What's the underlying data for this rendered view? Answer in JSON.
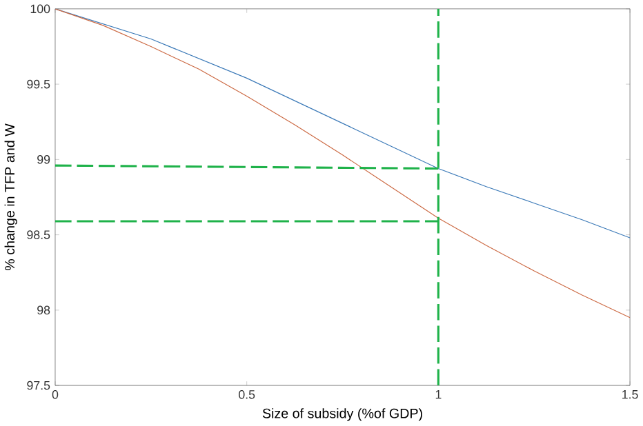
{
  "chart_data": {
    "type": "line",
    "xlabel": "Size of subsidy (%of GDP)",
    "ylabel": "% change in TFP and W",
    "xlim": [
      0,
      1.5
    ],
    "ylim": [
      97.5,
      100
    ],
    "xticks": [
      0,
      0.5,
      1,
      1.5
    ],
    "yticks": [
      97.5,
      98,
      98.5,
      99,
      99.5,
      100
    ],
    "grid": false,
    "series": [
      {
        "color": "#3c7ab8",
        "x": [
          0,
          0.125,
          0.25,
          0.375,
          0.5,
          0.625,
          0.75,
          0.875,
          1,
          1.125,
          1.25,
          1.375,
          1.5
        ],
        "values": [
          100,
          99.9,
          99.8,
          99.67,
          99.54,
          99.39,
          99.24,
          99.09,
          98.94,
          98.82,
          98.71,
          98.6,
          98.48
        ]
      },
      {
        "color": "#cc6a44",
        "x": [
          0,
          0.125,
          0.25,
          0.375,
          0.5,
          0.625,
          0.75,
          0.875,
          1,
          1.125,
          1.25,
          1.375,
          1.5
        ],
        "values": [
          100,
          99.89,
          99.75,
          99.6,
          99.42,
          99.23,
          99.03,
          98.82,
          98.61,
          98.43,
          98.26,
          98.1,
          97.95
        ]
      },
      {
        "color": "#1fb24a",
        "line_style": "dashed",
        "x": [
          0,
          1
        ],
        "values": [
          98.96,
          98.94
        ]
      },
      {
        "color": "#1fb24a",
        "line_style": "dashed",
        "x": [
          0,
          1
        ],
        "values": [
          98.59,
          98.59
        ]
      }
    ],
    "ref_lines": [
      {
        "axis": "x",
        "value": 1,
        "color": "#1fb24a",
        "line_style": "dashed"
      }
    ]
  }
}
